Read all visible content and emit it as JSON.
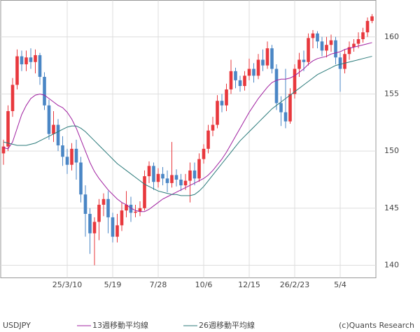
{
  "chart_data": {
    "type": "candlestick",
    "name": "USDJPY",
    "categories": [
      null,
      null,
      null,
      null,
      null,
      null,
      null,
      null,
      null,
      null,
      null,
      null,
      null,
      null,
      "25/3/10",
      null,
      null,
      null,
      null,
      null,
      null,
      null,
      null,
      null,
      "5/19",
      null,
      null,
      null,
      null,
      null,
      null,
      null,
      null,
      null,
      "7/28",
      null,
      null,
      null,
      null,
      null,
      null,
      null,
      null,
      null,
      "10/6",
      null,
      null,
      null,
      null,
      null,
      null,
      null,
      null,
      null,
      "12/15",
      null,
      null,
      null,
      null,
      null,
      null,
      null,
      null,
      null,
      "26/2/23",
      null,
      null,
      null,
      null,
      null,
      null,
      null,
      null,
      null,
      "5/4",
      null,
      null,
      null,
      null,
      null,
      null,
      null
    ],
    "open": [
      149.8,
      150.4,
      153.5,
      155.8,
      158.3,
      157.6,
      158.2,
      157.8,
      158.4,
      156.5,
      154.0,
      151.5,
      152.3,
      150.5,
      149.5,
      148.8,
      150.2,
      149.0,
      146.2,
      144.5,
      142.8,
      143.8,
      145.3,
      145.8,
      144.2,
      142.5,
      143.5,
      144.8,
      145.3,
      144.6,
      144.7,
      145.0,
      147.8,
      148.7,
      147.3,
      148.0,
      147.6,
      147.2,
      147.9,
      147.5,
      147.0,
      147.4,
      148.3,
      147.6,
      149.3,
      150.2,
      151.8,
      152.3,
      154.4,
      154.0,
      155.4,
      157.0,
      156.2,
      155.7,
      156.6,
      157.2,
      156.6,
      158.0,
      157.5,
      159.0,
      157.2,
      154.2,
      153.4,
      152.6,
      155.0,
      157.2,
      158.0,
      157.8,
      159.9,
      160.3,
      159.6,
      158.8,
      159.3,
      159.7,
      158.2,
      157.2,
      158.5,
      159.1,
      159.4,
      159.8,
      160.4,
      161.4
    ],
    "high": [
      151.0,
      154.0,
      156.4,
      158.9,
      158.8,
      158.8,
      159.0,
      158.9,
      158.6,
      156.9,
      154.5,
      153.5,
      152.8,
      151.3,
      150.2,
      150.7,
      151.0,
      149.5,
      147.0,
      145.0,
      144.2,
      145.8,
      146.3,
      146.5,
      144.6,
      144.5,
      145.5,
      146.5,
      146.0,
      145.3,
      145.6,
      148.3,
      149.1,
      149.0,
      148.5,
      148.6,
      148.3,
      150.8,
      148.4,
      148.0,
      148.0,
      149.0,
      149.0,
      149.8,
      150.6,
      152.3,
      153.0,
      154.9,
      155.0,
      155.9,
      158.0,
      157.3,
      156.6,
      157.0,
      158.1,
      157.7,
      158.5,
      158.9,
      159.6,
      159.3,
      157.6,
      154.8,
      157.2,
      155.5,
      157.6,
      158.6,
      158.8,
      160.3,
      160.6,
      160.5,
      160.0,
      160.0,
      160.2,
      160.0,
      158.6,
      158.9,
      159.6,
      159.8,
      160.4,
      160.8,
      161.7,
      162.0
    ],
    "low": [
      148.8,
      150.0,
      153.0,
      155.4,
      157.0,
      157.0,
      157.2,
      156.8,
      155.8,
      153.6,
      151.0,
      150.8,
      150.0,
      148.7,
      148.0,
      148.3,
      147.5,
      145.5,
      142.5,
      141.0,
      140.0,
      142.2,
      144.3,
      142.8,
      142.0,
      142.0,
      143.0,
      144.2,
      143.8,
      144.2,
      144.3,
      144.8,
      147.2,
      146.6,
      146.8,
      147.0,
      146.4,
      146.8,
      146.9,
      146.5,
      146.6,
      145.5,
      147.0,
      147.3,
      148.9,
      149.8,
      151.3,
      152.0,
      153.4,
      153.5,
      155.0,
      155.5,
      155.2,
      155.3,
      156.2,
      156.0,
      156.3,
      157.0,
      157.2,
      156.8,
      153.6,
      152.2,
      152.0,
      152.4,
      154.6,
      156.5,
      157.0,
      157.5,
      159.0,
      159.0,
      158.3,
      158.2,
      158.7,
      157.6,
      155.2,
      156.8,
      158.0,
      158.7,
      159.0,
      159.5,
      160.0,
      161.2
    ],
    "close": [
      150.4,
      153.5,
      155.8,
      158.3,
      157.6,
      158.2,
      157.8,
      158.4,
      156.5,
      154.0,
      151.5,
      152.3,
      150.5,
      149.5,
      148.8,
      150.2,
      149.0,
      146.2,
      144.5,
      142.8,
      143.8,
      145.3,
      145.8,
      144.2,
      142.5,
      143.5,
      144.8,
      145.3,
      144.6,
      144.7,
      145.0,
      147.8,
      148.7,
      147.3,
      148.0,
      147.6,
      147.2,
      147.9,
      147.5,
      147.0,
      147.4,
      148.3,
      147.6,
      149.3,
      150.2,
      151.8,
      152.3,
      154.4,
      154.0,
      155.4,
      157.0,
      156.2,
      155.7,
      156.6,
      157.2,
      156.6,
      158.0,
      157.5,
      159.0,
      157.2,
      154.2,
      153.4,
      152.6,
      155.0,
      157.2,
      158.0,
      157.8,
      159.9,
      160.3,
      159.6,
      158.8,
      159.3,
      159.7,
      158.2,
      157.2,
      158.5,
      159.1,
      159.4,
      159.8,
      160.4,
      161.4,
      161.8
    ],
    "up_color": "#e8383d",
    "down_color": "#4a86c5",
    "series": [
      {
        "name": "13週移動平均線",
        "color": "#a020a0",
        "values": [
          150.3,
          150.2,
          150.8,
          152.0,
          153.2,
          154.0,
          154.6,
          154.9,
          155.0,
          154.9,
          154.6,
          154.3,
          154.0,
          153.8,
          153.4,
          152.8,
          152.0,
          151.0,
          150.0,
          149.0,
          148.2,
          147.6,
          147.1,
          146.6,
          146.2,
          145.8,
          145.5,
          145.3,
          145.0,
          144.8,
          144.7,
          144.7,
          144.9,
          145.2,
          145.5,
          145.8,
          146.0,
          146.2,
          146.4,
          146.6,
          146.8,
          147.0,
          147.2,
          147.4,
          147.6,
          147.9,
          148.3,
          148.8,
          149.3,
          149.9,
          150.6,
          151.3,
          152.0,
          152.7,
          153.4,
          154.0,
          154.6,
          155.1,
          155.6,
          156.0,
          156.2,
          156.3,
          156.3,
          156.4,
          156.6,
          156.9,
          157.2,
          157.6,
          157.9,
          158.1,
          158.2,
          158.3,
          158.5,
          158.6,
          158.7,
          158.9,
          159.0,
          159.1,
          159.2,
          159.3,
          159.4,
          159.5
        ]
      },
      {
        "name": "26週移動平均線",
        "color": "#2a7a7a",
        "values": [
          150.8,
          150.7,
          150.6,
          150.5,
          150.5,
          150.5,
          150.6,
          150.7,
          150.9,
          151.1,
          151.3,
          151.5,
          151.7,
          151.9,
          152.1,
          152.2,
          152.2,
          152.0,
          151.7,
          151.3,
          150.9,
          150.5,
          150.1,
          149.7,
          149.3,
          148.9,
          148.6,
          148.3,
          148.0,
          147.7,
          147.4,
          147.1,
          146.9,
          146.7,
          146.5,
          146.4,
          146.3,
          146.2,
          146.2,
          146.1,
          146.1,
          146.1,
          146.2,
          146.5,
          146.9,
          147.4,
          147.9,
          148.4,
          148.9,
          149.4,
          149.9,
          150.4,
          150.9,
          151.3,
          151.7,
          152.1,
          152.5,
          152.9,
          153.3,
          153.7,
          154.0,
          154.3,
          154.6,
          154.9,
          155.2,
          155.5,
          155.8,
          156.1,
          156.4,
          156.7,
          156.9,
          157.1,
          157.3,
          157.5,
          157.6,
          157.7,
          157.8,
          157.9,
          158.0,
          158.1,
          158.2,
          158.3
        ]
      }
    ],
    "ylim": [
      138.9,
      163.2
    ],
    "yticks": [
      140,
      145,
      150,
      155,
      160
    ],
    "grid": true,
    "credit": "(c)Quants Research"
  }
}
